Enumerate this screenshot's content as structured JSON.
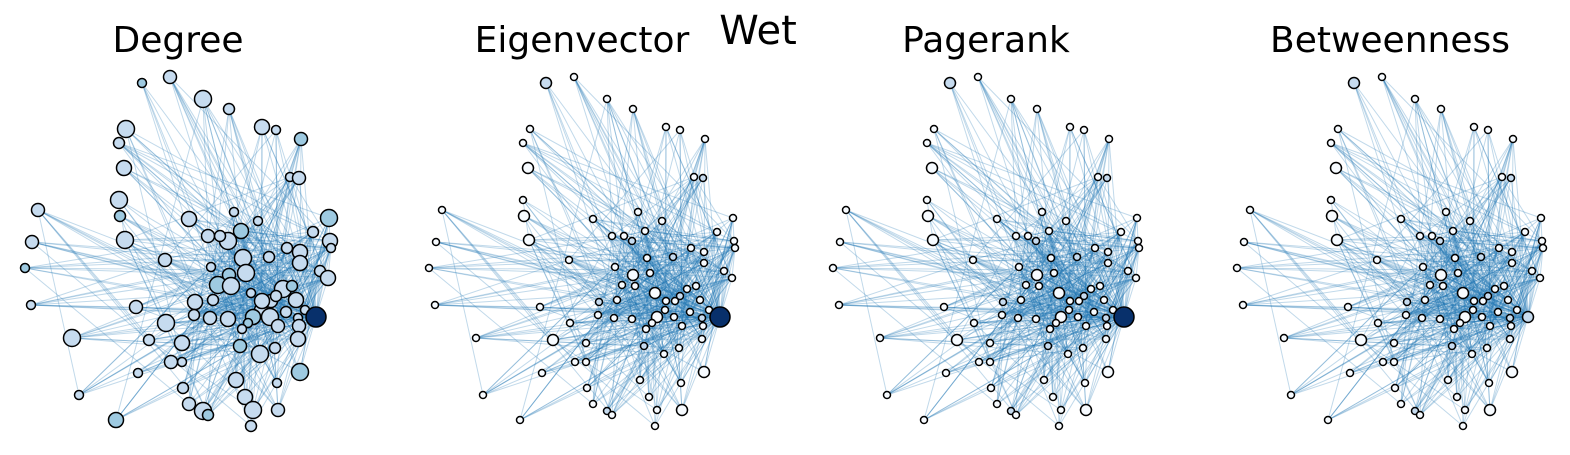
{
  "figure": {
    "title": "Wet",
    "edge_color": "#1f77b4",
    "node_outline_color": "#000000",
    "colormap": [
      "#f7fbff",
      "#c6dbef",
      "#9ecae1",
      "#08306b"
    ],
    "panels": [
      {
        "title": "Degree",
        "hub_value": 1.0,
        "general_level": "medium"
      },
      {
        "title": "Eigenvector",
        "hub_value": 1.0,
        "general_level": "low"
      },
      {
        "title": "Pagerank",
        "hub_value": 1.0,
        "general_level": "low"
      },
      {
        "title": "Betweenness",
        "hub_value": 0.25,
        "general_level": "low"
      }
    ]
  }
}
